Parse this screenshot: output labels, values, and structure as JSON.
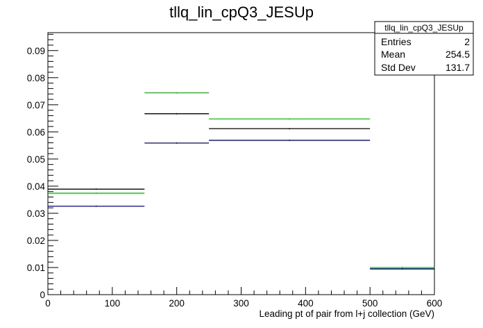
{
  "chart_data": {
    "type": "histogram",
    "title": "tllq_lin_cpQ3_JESUp",
    "xlabel": "Leading pt of pair from l+j collection (GeV)",
    "ylabel": "",
    "xlim": [
      0,
      600
    ],
    "ylim": [
      0,
      0.0966
    ],
    "x_ticks": [
      "0",
      "100",
      "200",
      "300",
      "400",
      "500",
      "600"
    ],
    "y_ticks": [
      "0",
      "0.01",
      "0.02",
      "0.03",
      "0.04",
      "0.05",
      "0.06",
      "0.07",
      "0.08",
      "0.09"
    ],
    "bins": [
      [
        0,
        150
      ],
      [
        150,
        250
      ],
      [
        250,
        500
      ],
      [
        500,
        600
      ]
    ],
    "series": [
      {
        "color": "#000000",
        "values": [
          0.0389,
          0.0667,
          0.0612,
          0.0095
        ]
      },
      {
        "color": "#00cc00",
        "values": [
          0.0374,
          0.0744,
          0.0648,
          0.01
        ]
      },
      {
        "color": "#000099",
        "values": [
          0.0326,
          0.0559,
          0.0569,
          0.0095
        ]
      }
    ],
    "grid": false,
    "legend": "none"
  },
  "stats": {
    "title": "tllq_lin_cpQ3_JESUp",
    "rows": [
      {
        "label": "Entries",
        "value": "2"
      },
      {
        "label": "Mean",
        "value": "254.5"
      },
      {
        "label": "Std Dev",
        "value": "131.7"
      }
    ]
  }
}
